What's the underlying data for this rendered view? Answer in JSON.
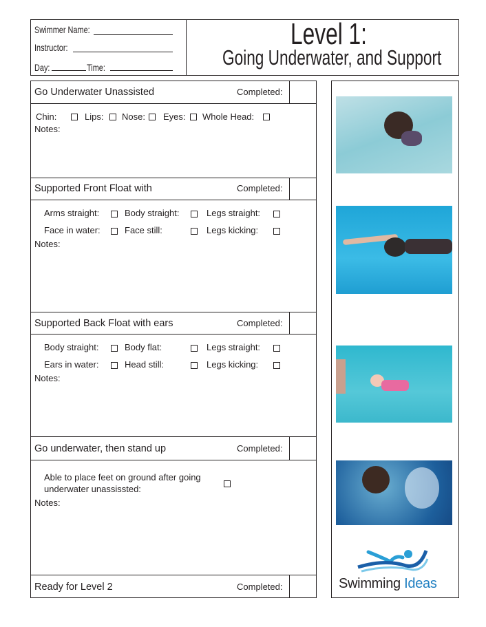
{
  "header": {
    "swimmer_name_label": "Swimmer Name:",
    "instructor_label": "Instructor:",
    "day_label": "Day:",
    "time_label": "Time:",
    "title": "Level 1:",
    "subtitle": "Going Underwater, and Support"
  },
  "sections": [
    {
      "title": "Go Underwater Unassisted",
      "completed_label": "Completed:",
      "items": [
        "Chin:",
        "Lips:",
        "Nose:",
        "Eyes:",
        "Whole Head:"
      ],
      "notes_label": "Notes:"
    },
    {
      "title": "Supported Front Float with",
      "completed_label": "Completed:",
      "items": [
        "Arms straight:",
        "Body straight:",
        "Legs straight:",
        "Face in water:",
        "Face still:",
        "Legs kicking:"
      ],
      "notes_label": "Notes:"
    },
    {
      "title": "Supported Back Float with ears",
      "completed_label": "Completed:",
      "items": [
        "Body straight:",
        "Body flat:",
        "Legs straight:",
        "Ears in water:",
        "Head still:",
        "Legs kicking:"
      ],
      "notes_label": "Notes:"
    },
    {
      "title": "Go underwater, then stand up",
      "completed_label": "Completed:",
      "items": [
        "Able to place feet on ground after going underwater unassissted:"
      ],
      "notes_label": "Notes:"
    },
    {
      "title": "Ready for Level 2",
      "completed_label": "Completed:"
    }
  ],
  "logo": {
    "text_a": "Swimming",
    "text_b": "Ideas",
    "colors": {
      "dark": "#231f20",
      "blue": "#1f7fc1",
      "wave": "#2a9fd6"
    }
  }
}
